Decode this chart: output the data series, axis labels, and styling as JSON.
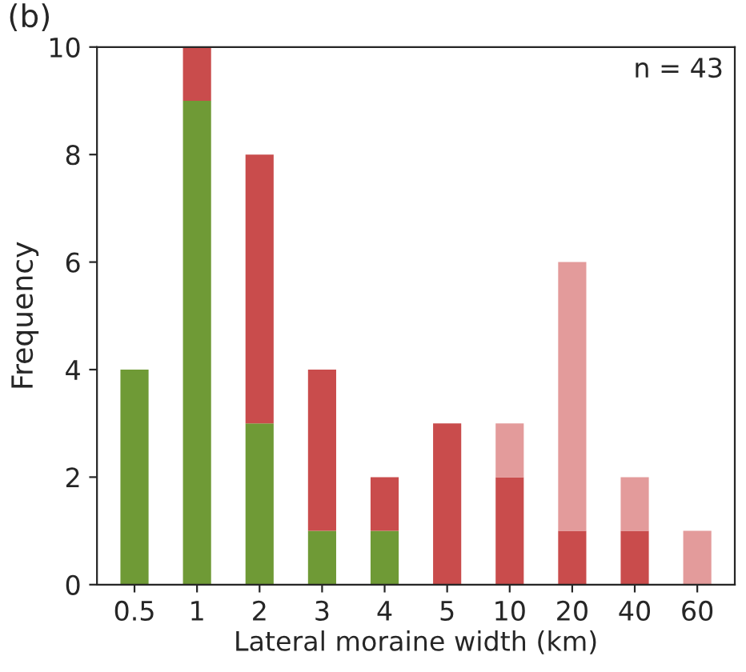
{
  "chart_data": {
    "type": "bar",
    "stacked": true,
    "xlabel": "Lateral moraine width (km)",
    "ylabel": "Frequency",
    "categories": [
      "0.5",
      "1",
      "2",
      "3",
      "4",
      "5",
      "10",
      "20",
      "40",
      "60"
    ],
    "series": [
      {
        "color": "#6f9a36",
        "values": [
          4,
          9,
          3,
          1,
          1,
          null,
          null,
          null,
          null,
          null
        ]
      },
      {
        "color": "#c94c4c",
        "values": [
          null,
          1,
          5,
          3,
          1,
          3,
          2,
          1,
          1,
          null
        ]
      },
      {
        "color": "#e39b9b",
        "values": [
          null,
          null,
          null,
          null,
          null,
          null,
          1,
          5,
          1,
          1
        ]
      }
    ],
    "ylim": [
      0,
      10
    ],
    "yticks": [
      0,
      2,
      4,
      6,
      8,
      10
    ],
    "grid": false,
    "legend": false,
    "annotations": [
      "(b)",
      "n = 43"
    ]
  }
}
